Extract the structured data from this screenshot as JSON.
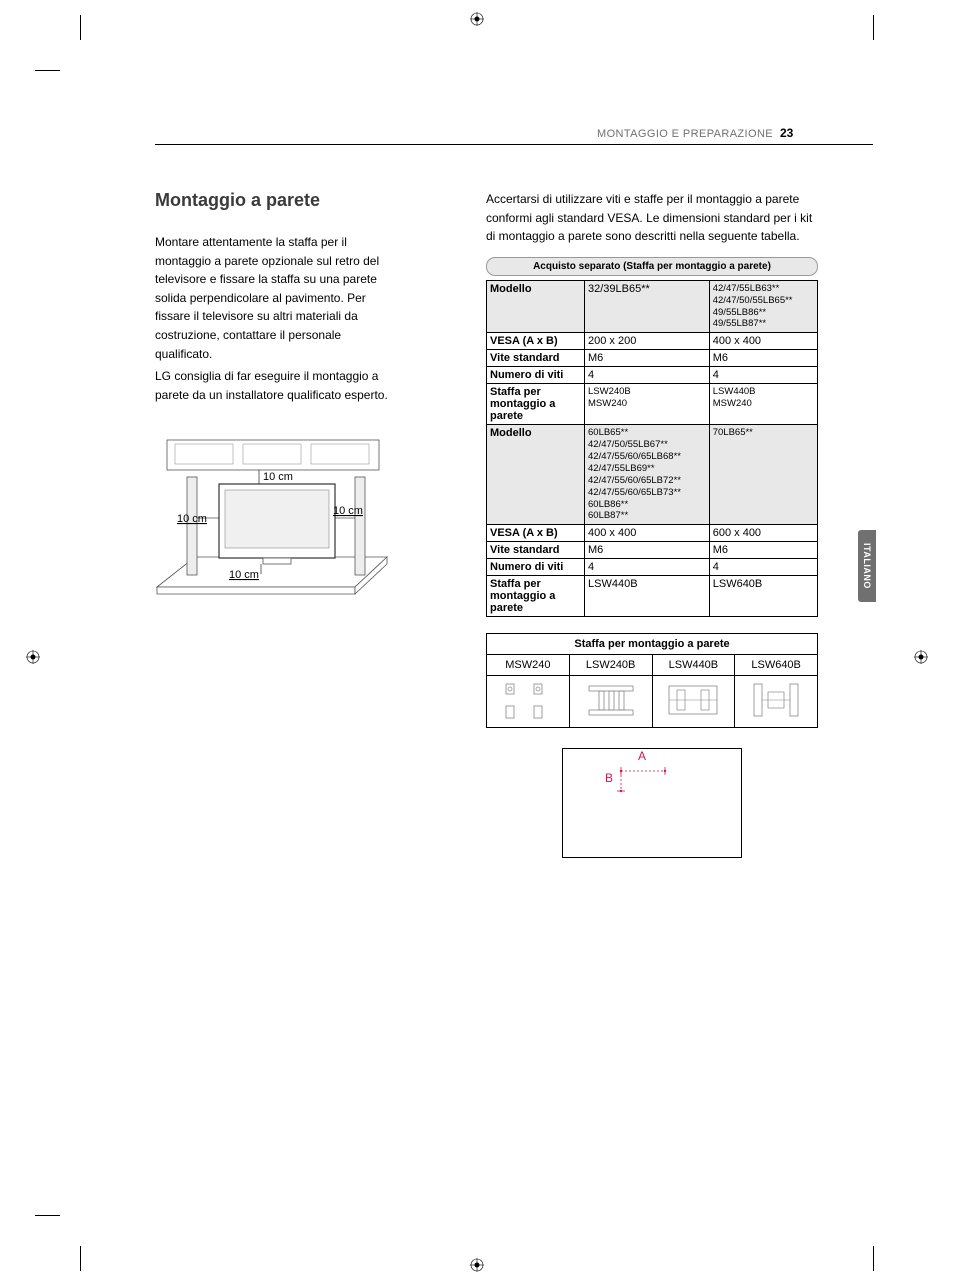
{
  "header": {
    "section": "MONTAGGIO E PREPARAZIONE",
    "pageNumber": "23",
    "sideTab": "ITALIANO"
  },
  "left": {
    "title": "Montaggio a parete",
    "para1": "Montare attentamente la staffa per il montaggio a parete opzionale sul retro del televisore e fissare la staffa su una parete solida perpendicolare al pavimento. Per fissare il televisore su altri materiali da costruzione, contattare il personale qualificato.",
    "para2": "LG consiglia di far eseguire il montaggio a parete da un installatore qualificato esperto.",
    "diagram": {
      "clearances": [
        "10 cm",
        "10 cm",
        "10 cm",
        "10 cm"
      ]
    }
  },
  "right": {
    "para": "Accertarsi di utilizzare viti e staffe per il montaggio a parete conformi agli standard VESA. Le dimensioni standard per i kit di montaggio a parete sono descritti nella seguente tabella.",
    "callout": "Acquisto separato (Staffa per montaggio a parete)",
    "specTable": {
      "rows": [
        {
          "h": "Modello",
          "shade": true,
          "c1": "32/39LB65**",
          "c2": "42/47/55LB63**\n42/47/50/55LB65**\n49/55LB86**\n49/55LB87**"
        },
        {
          "h": "VESA (A x B)",
          "c1": "200 x 200",
          "c2": "400 x 400"
        },
        {
          "h": "Vite standard",
          "c1": "M6",
          "c2": "M6"
        },
        {
          "h": "Numero di viti",
          "c1": "4",
          "c2": "4"
        },
        {
          "h": "Staffa per montaggio a parete",
          "c1": "LSW240B\nMSW240",
          "c2": "LSW440B\nMSW240"
        },
        {
          "h": "Modello",
          "shade": true,
          "small": true,
          "c1": "60LB65**\n42/47/50/55LB67**\n42/47/55/60/65LB68**\n42/47/55LB69**\n42/47/55/60/65LB72**\n42/47/55/60/65LB73**\n60LB86**\n60LB87**",
          "c2": "70LB65**"
        },
        {
          "h": "VESA (A x B)",
          "c1": "400 x 400",
          "c2": "600 x 400"
        },
        {
          "h": "Vite standard",
          "c1": "M6",
          "c2": "M6"
        },
        {
          "h": "Numero di viti",
          "c1": "4",
          "c2": "4"
        },
        {
          "h": "Staffa per montaggio a parete",
          "c1": "LSW440B",
          "c2": "LSW640B"
        }
      ]
    },
    "bracketTable": {
      "title": "Staffa per montaggio a parete",
      "cols": [
        "MSW240",
        "LSW240B",
        "LSW440B",
        "LSW640B"
      ]
    },
    "vesa": {
      "labelA": "A",
      "labelB": "B"
    }
  }
}
